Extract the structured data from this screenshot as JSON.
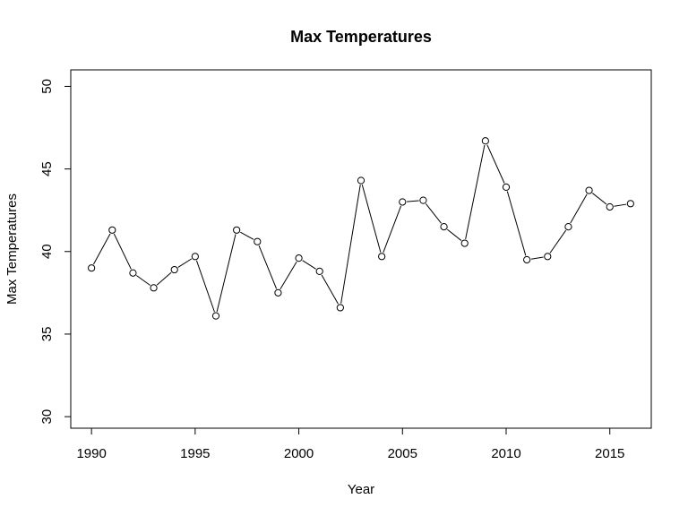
{
  "chart_data": {
    "type": "line",
    "title": "Max Temperatures",
    "xlabel": "Year",
    "ylabel": "Max Temperatures",
    "xlim": [
      1989,
      2017
    ],
    "ylim": [
      29.3,
      51
    ],
    "x_ticks": [
      1990,
      1995,
      2000,
      2005,
      2010,
      2015
    ],
    "y_ticks": [
      30,
      35,
      40,
      45,
      50
    ],
    "grid": false,
    "legend": "none",
    "line_color": "#000000",
    "marker": "open-circle",
    "series": [
      {
        "x": [
          1990,
          1991,
          1992,
          1993,
          1994,
          1995,
          1996,
          1997,
          1998,
          1999,
          2000,
          2001,
          2002,
          2003,
          2004,
          2005,
          2006,
          2007,
          2008,
          2009,
          2010,
          2011,
          2012,
          2013,
          2014,
          2015,
          2016
        ],
        "values": [
          39.0,
          41.3,
          38.7,
          37.8,
          38.9,
          39.7,
          36.1,
          41.3,
          40.6,
          37.5,
          39.6,
          38.8,
          36.6,
          44.3,
          39.7,
          43.0,
          43.1,
          41.5,
          40.5,
          46.7,
          43.9,
          39.5,
          39.7,
          41.5,
          43.7,
          42.7,
          42.9
        ]
      }
    ]
  }
}
